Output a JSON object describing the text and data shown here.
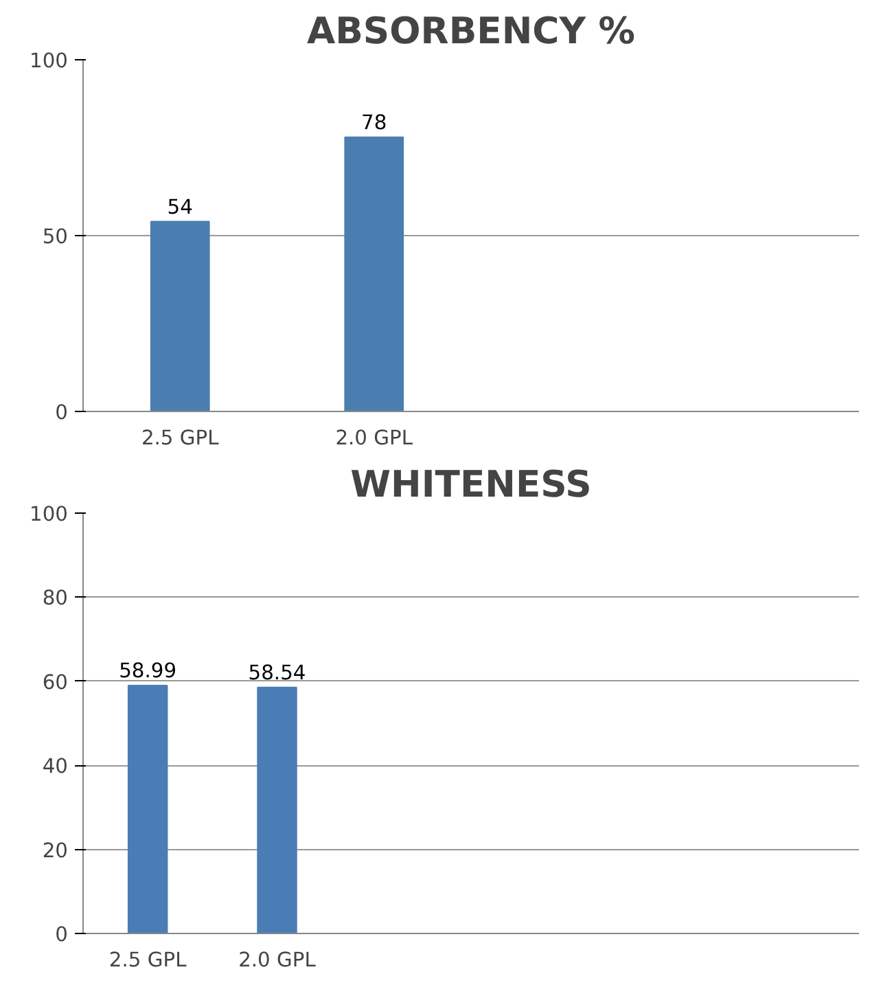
{
  "chart_data": [
    {
      "type": "bar",
      "title": "ABSORBENCY %",
      "categories": [
        "2.5 GPL",
        "2.0 GPL",
        null,
        null
      ],
      "values": [
        54,
        78,
        null,
        null
      ],
      "color": "#4a7eb0",
      "ylim": [
        0,
        100
      ],
      "yticks": [
        0,
        50,
        100
      ],
      "grid": "y",
      "data_labels": true
    },
    {
      "type": "bar",
      "title": "WHITENESS",
      "categories": [
        "2.5 GPL",
        "2.0 GPL",
        null,
        null,
        null,
        null
      ],
      "values": [
        58.99,
        58.54,
        null,
        null,
        null,
        null
      ],
      "color": "#4a7db5",
      "ylim": [
        0,
        100
      ],
      "yticks": [
        0,
        20,
        40,
        60,
        80,
        100
      ],
      "grid": "y",
      "data_labels": true
    }
  ]
}
